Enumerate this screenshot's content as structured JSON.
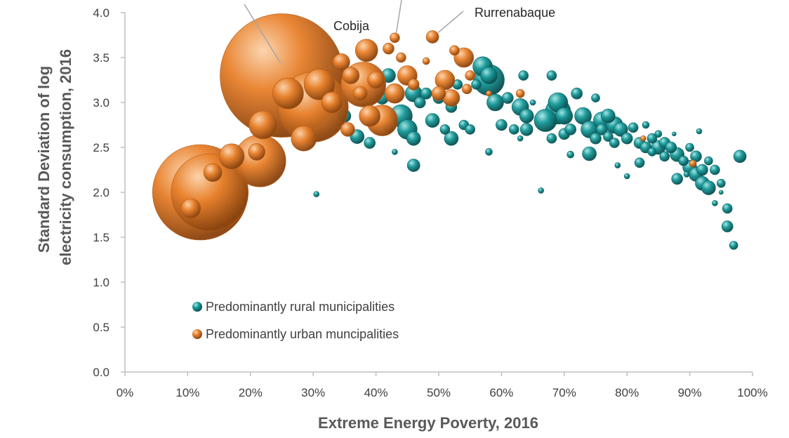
{
  "chart_data": {
    "type": "scatter",
    "title": "",
    "xlabel": "Extreme Energy Poverty, 2016",
    "ylabel": [
      "Standard Deviation of log",
      "electricity consumption, 2016"
    ],
    "xlim": [
      0,
      1
    ],
    "ylim": [
      0,
      4
    ],
    "x_ticks": [
      0,
      0.1,
      0.2,
      0.3,
      0.4,
      0.5,
      0.6,
      0.7,
      0.8,
      0.9,
      1.0
    ],
    "x_tick_labels": [
      "0%",
      "10%",
      "20%",
      "30%",
      "40%",
      "50%",
      "60%",
      "70%",
      "80%",
      "90%",
      "100%"
    ],
    "y_ticks": [
      0,
      0.5,
      1.0,
      1.5,
      2.0,
      2.5,
      3.0,
      3.5,
      4.0
    ],
    "y_tick_labels": [
      "0.0",
      "0.5",
      "1.0",
      "1.5",
      "2.0",
      "2.5",
      "3.0",
      "3.5",
      "4.0"
    ],
    "grid": false,
    "legend_position": "lower-left",
    "colors": {
      "rural": "#1a9a9a",
      "urban": "#e8822e"
    },
    "series": [
      {
        "name": "Predominantly rural municipalities",
        "key": "rural",
        "points": [
          [
            0.305,
            1.98,
            4
          ],
          [
            0.35,
            2.85,
            9
          ],
          [
            0.37,
            2.62,
            10
          ],
          [
            0.39,
            2.55,
            8
          ],
          [
            0.41,
            3.05,
            9
          ],
          [
            0.42,
            2.72,
            7
          ],
          [
            0.42,
            3.3,
            10
          ],
          [
            0.43,
            2.45,
            4
          ],
          [
            0.44,
            2.85,
            16
          ],
          [
            0.45,
            2.7,
            14
          ],
          [
            0.46,
            2.6,
            10
          ],
          [
            0.46,
            2.3,
            9
          ],
          [
            0.46,
            3.1,
            12
          ],
          [
            0.47,
            3.0,
            8
          ],
          [
            0.48,
            3.1,
            8
          ],
          [
            0.49,
            2.8,
            10
          ],
          [
            0.5,
            3.05,
            8
          ],
          [
            0.51,
            2.7,
            7
          ],
          [
            0.52,
            2.6,
            10
          ],
          [
            0.52,
            2.95,
            8
          ],
          [
            0.53,
            3.2,
            7
          ],
          [
            0.54,
            2.75,
            7
          ],
          [
            0.55,
            2.7,
            7
          ],
          [
            0.56,
            3.2,
            7
          ],
          [
            0.57,
            3.4,
            14
          ],
          [
            0.58,
            3.25,
            22
          ],
          [
            0.58,
            3.3,
            12
          ],
          [
            0.59,
            3.0,
            12
          ],
          [
            0.58,
            2.45,
            5
          ],
          [
            0.6,
            2.75,
            8
          ],
          [
            0.61,
            3.05,
            8
          ],
          [
            0.62,
            2.7,
            7
          ],
          [
            0.63,
            2.95,
            12
          ],
          [
            0.63,
            2.6,
            4
          ],
          [
            0.635,
            3.3,
            7
          ],
          [
            0.64,
            2.7,
            9
          ],
          [
            0.64,
            2.85,
            10
          ],
          [
            0.65,
            3.0,
            4
          ],
          [
            0.663,
            2.02,
            4
          ],
          [
            0.67,
            2.8,
            16
          ],
          [
            0.68,
            2.6,
            7
          ],
          [
            0.68,
            3.3,
            7
          ],
          [
            0.69,
            3.0,
            14
          ],
          [
            0.69,
            2.9,
            18
          ],
          [
            0.7,
            2.85,
            12
          ],
          [
            0.7,
            2.65,
            8
          ],
          [
            0.71,
            2.42,
            5
          ],
          [
            0.71,
            2.7,
            8
          ],
          [
            0.72,
            3.1,
            8
          ],
          [
            0.73,
            2.85,
            12
          ],
          [
            0.74,
            2.7,
            12
          ],
          [
            0.74,
            2.43,
            10
          ],
          [
            0.75,
            2.6,
            8
          ],
          [
            0.75,
            3.05,
            6
          ],
          [
            0.76,
            2.8,
            12
          ],
          [
            0.76,
            2.7,
            8
          ],
          [
            0.77,
            2.85,
            10
          ],
          [
            0.77,
            2.62,
            7
          ],
          [
            0.78,
            2.75,
            12
          ],
          [
            0.78,
            2.55,
            7
          ],
          [
            0.785,
            2.3,
            4
          ],
          [
            0.79,
            2.7,
            10
          ],
          [
            0.8,
            2.6,
            8
          ],
          [
            0.8,
            2.18,
            4
          ],
          [
            0.81,
            2.72,
            7
          ],
          [
            0.82,
            2.55,
            8
          ],
          [
            0.82,
            2.33,
            7
          ],
          [
            0.83,
            2.5,
            8
          ],
          [
            0.83,
            2.75,
            5
          ],
          [
            0.84,
            2.6,
            7
          ],
          [
            0.84,
            2.45,
            6
          ],
          [
            0.85,
            2.5,
            10
          ],
          [
            0.85,
            2.65,
            5
          ],
          [
            0.86,
            2.4,
            7
          ],
          [
            0.86,
            2.55,
            8
          ],
          [
            0.87,
            2.5,
            8
          ],
          [
            0.875,
            2.65,
            3
          ],
          [
            0.88,
            2.42,
            10
          ],
          [
            0.88,
            2.15,
            8
          ],
          [
            0.89,
            2.35,
            7
          ],
          [
            0.895,
            2.2,
            4
          ],
          [
            0.9,
            2.28,
            10
          ],
          [
            0.9,
            2.5,
            6
          ],
          [
            0.91,
            2.4,
            8
          ],
          [
            0.91,
            2.2,
            10
          ],
          [
            0.915,
            2.68,
            4
          ],
          [
            0.92,
            2.25,
            8
          ],
          [
            0.92,
            2.1,
            10
          ],
          [
            0.93,
            2.05,
            10
          ],
          [
            0.93,
            2.35,
            6
          ],
          [
            0.94,
            2.25,
            7
          ],
          [
            0.94,
            1.88,
            4
          ],
          [
            0.95,
            2.1,
            6
          ],
          [
            0.95,
            2.0,
            3
          ],
          [
            0.96,
            1.82,
            7
          ],
          [
            0.96,
            1.62,
            8
          ],
          [
            0.97,
            1.41,
            6
          ],
          [
            0.98,
            2.4,
            9
          ]
        ]
      },
      {
        "name": "Predominantly urban muncipalities",
        "key": "urban",
        "points": [
          [
            0.12,
            2.0,
            68
          ],
          [
            0.135,
            2.0,
            55
          ],
          [
            0.105,
            1.82,
            14
          ],
          [
            0.14,
            2.22,
            13
          ],
          [
            0.17,
            2.4,
            18
          ],
          [
            0.21,
            2.45,
            12
          ],
          [
            0.215,
            2.35,
            37
          ],
          [
            0.22,
            2.75,
            20
          ],
          [
            0.25,
            3.3,
            88
          ],
          [
            0.26,
            3.1,
            22
          ],
          [
            0.285,
            2.6,
            18
          ],
          [
            0.3,
            2.95,
            50
          ],
          [
            0.31,
            3.2,
            22
          ],
          [
            0.33,
            3.0,
            15
          ],
          [
            0.345,
            3.45,
            12
          ],
          [
            0.355,
            2.7,
            10
          ],
          [
            0.36,
            3.3,
            12
          ],
          [
            0.375,
            3.1,
            10
          ],
          [
            0.38,
            3.2,
            32
          ],
          [
            0.385,
            3.58,
            16
          ],
          [
            0.39,
            2.85,
            15
          ],
          [
            0.4,
            3.25,
            12
          ],
          [
            0.41,
            2.8,
            22
          ],
          [
            0.42,
            3.6,
            8
          ],
          [
            0.43,
            3.1,
            14
          ],
          [
            0.43,
            3.72,
            7
          ],
          [
            0.44,
            3.5,
            7
          ],
          [
            0.45,
            3.3,
            14
          ],
          [
            0.46,
            3.2,
            8
          ],
          [
            0.48,
            3.46,
            5
          ],
          [
            0.49,
            3.73,
            9
          ],
          [
            0.5,
            3.1,
            10
          ],
          [
            0.51,
            3.25,
            14
          ],
          [
            0.52,
            3.05,
            12
          ],
          [
            0.525,
            3.58,
            7
          ],
          [
            0.54,
            3.5,
            14
          ],
          [
            0.545,
            3.15,
            7
          ],
          [
            0.55,
            3.3,
            7
          ],
          [
            0.58,
            3.1,
            4
          ],
          [
            0.63,
            3.1,
            6
          ],
          [
            0.826,
            2.6,
            4
          ],
          [
            0.905,
            2.32,
            5
          ]
        ]
      }
    ],
    "annotations": [
      {
        "text": "Cobija",
        "x": 0.385,
        "y": 3.58
      },
      {
        "text": "Rurrenabaque",
        "x": 0.49,
        "y": 3.73
      },
      {
        "text": "",
        "x": 0.25,
        "y": 3.3
      },
      {
        "text": "",
        "x": 0.43,
        "y": 3.72
      }
    ]
  },
  "legend": {
    "rural_label": "Predominantly rural municipalities",
    "urban_label": "Predominantly urban muncipalities"
  }
}
